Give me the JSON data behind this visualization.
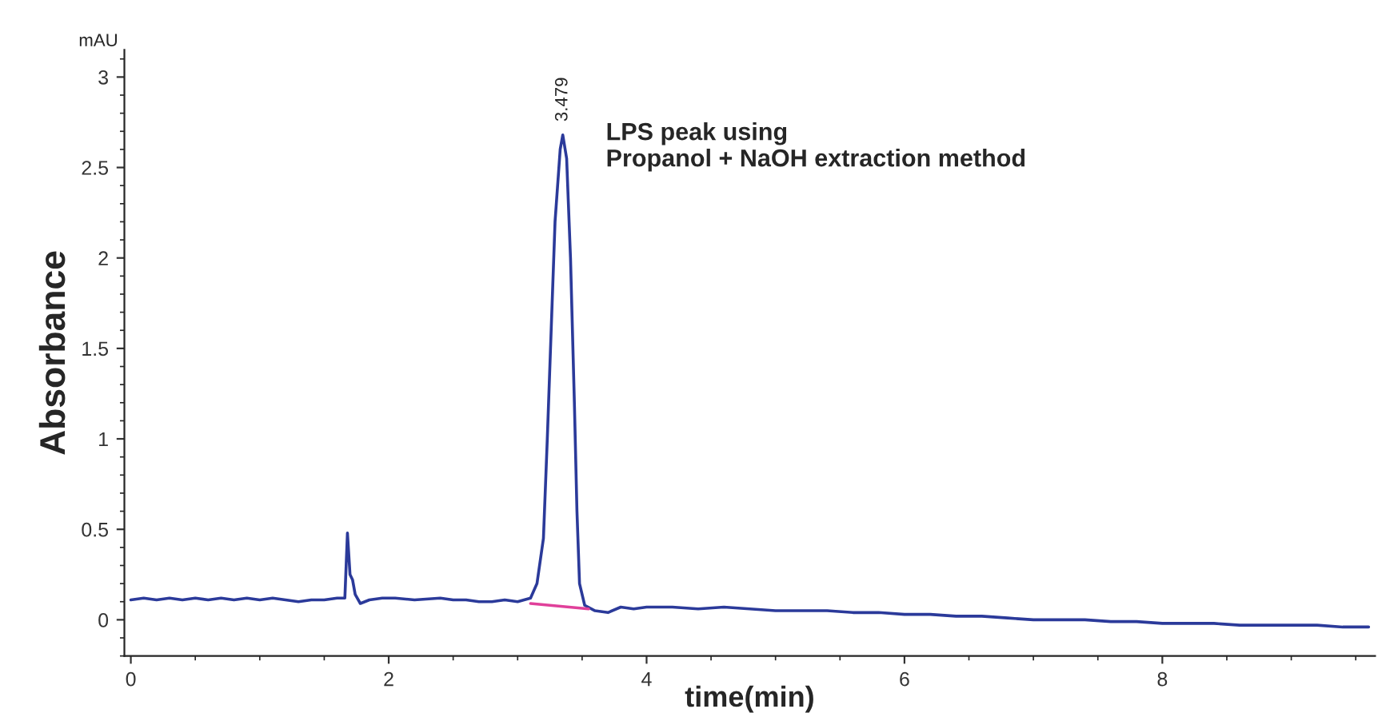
{
  "chart_data": {
    "type": "line",
    "ylabel": "Absorbance",
    "xlabel": "time(min)",
    "annotations": [
      "mAU",
      "LPS peak using\nPropanol + NaOH extraction method",
      {
        "text": "3.479",
        "x": 3.35,
        "y": 2.68
      }
    ],
    "series": [
      {
        "color": "#2b3a9a",
        "x": [
          0,
          0.1,
          0.2,
          0.3,
          0.4,
          0.5,
          0.6,
          0.7,
          0.8,
          0.9,
          1.0,
          1.1,
          1.2,
          1.3,
          1.4,
          1.5,
          1.6,
          1.66,
          1.68,
          1.7,
          1.72,
          1.74,
          1.78,
          1.85,
          1.95,
          2.05,
          2.2,
          2.4,
          2.5,
          2.6,
          2.7,
          2.8,
          2.9,
          3.0,
          3.1,
          3.15,
          3.2,
          3.23,
          3.26,
          3.29,
          3.33,
          3.35,
          3.38,
          3.41,
          3.44,
          3.46,
          3.48,
          3.52,
          3.6,
          3.7,
          3.8,
          3.9,
          4.0,
          4.2,
          4.4,
          4.6,
          4.8,
          5.0,
          5.2,
          5.4,
          5.6,
          5.8,
          6.0,
          6.2,
          6.4,
          6.6,
          6.8,
          7.0,
          7.2,
          7.4,
          7.6,
          7.8,
          8.0,
          8.2,
          8.4,
          8.6,
          8.8,
          9.0,
          9.2,
          9.4,
          9.6
        ],
        "values": [
          0.11,
          0.12,
          0.11,
          0.12,
          0.11,
          0.12,
          0.11,
          0.12,
          0.11,
          0.12,
          0.11,
          0.12,
          0.11,
          0.1,
          0.11,
          0.11,
          0.12,
          0.12,
          0.48,
          0.25,
          0.22,
          0.14,
          0.09,
          0.11,
          0.12,
          0.12,
          0.11,
          0.12,
          0.11,
          0.11,
          0.1,
          0.1,
          0.11,
          0.1,
          0.12,
          0.2,
          0.45,
          1.0,
          1.6,
          2.2,
          2.6,
          2.68,
          2.55,
          2.0,
          1.2,
          0.6,
          0.2,
          0.08,
          0.05,
          0.04,
          0.07,
          0.06,
          0.07,
          0.07,
          0.06,
          0.07,
          0.06,
          0.05,
          0.05,
          0.05,
          0.04,
          0.04,
          0.03,
          0.03,
          0.02,
          0.02,
          0.01,
          0.0,
          0.0,
          0.0,
          -0.01,
          -0.01,
          -0.02,
          -0.02,
          -0.02,
          -0.03,
          -0.03,
          -0.03,
          -0.03,
          -0.04,
          -0.04
        ]
      },
      {
        "color": "#e0409a",
        "x": [
          3.1,
          3.55
        ],
        "values": [
          0.09,
          0.06
        ]
      }
    ],
    "xlim": [
      -0.05,
      9.65
    ],
    "ylim": [
      -0.2,
      3.15
    ],
    "xticks": [
      0,
      2,
      4,
      6,
      8
    ],
    "yticks": [
      0,
      0.5,
      1,
      1.5,
      2,
      2.5,
      3
    ],
    "grid": false,
    "legend": false,
    "marker": "none",
    "line_style": "solid"
  }
}
